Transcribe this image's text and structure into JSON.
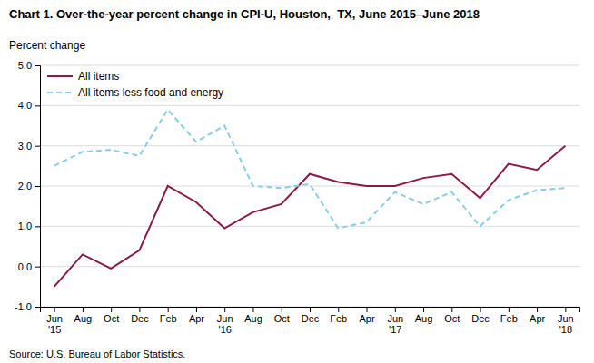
{
  "chart_data": {
    "type": "line",
    "title": "Chart 1. Over-the-year percent change in CPI-U, Houston,  TX, June 2015–June 2018",
    "ylabel": "Percent change",
    "annotations": [
      "Source: U.S. Bureau of Labor Statistics."
    ],
    "categories": [
      "Jun\n'15",
      "Aug",
      "Oct",
      "Dec",
      "Feb",
      "Apr",
      "Jun\n'16",
      "Aug",
      "Oct",
      "Dec",
      "Feb",
      "Apr",
      "Jun\n'17",
      "Aug",
      "Oct",
      "Dec",
      "Feb",
      "Apr",
      "Jun\n'18"
    ],
    "series": [
      {
        "name": "All items",
        "color": "#8B1A4A",
        "line_style": "solid",
        "values": [
          -0.5,
          0.3,
          -0.05,
          0.4,
          2.0,
          1.6,
          0.95,
          1.35,
          1.55,
          2.3,
          2.1,
          2.0,
          2.0,
          2.2,
          2.3,
          1.7,
          2.55,
          2.4,
          3.0
        ]
      },
      {
        "name": "All items less food and energy",
        "color": "#87CEEB",
        "line_style": "dashed",
        "values": [
          2.5,
          2.85,
          2.9,
          2.75,
          3.9,
          3.1,
          3.5,
          2.0,
          1.95,
          2.05,
          0.95,
          1.1,
          1.85,
          1.55,
          1.85,
          1.0,
          1.65,
          1.9,
          1.95
        ]
      }
    ],
    "ylim": [
      -1.0,
      5.0
    ],
    "yticks": [
      {
        "value": -1.0,
        "label": "-1.0"
      },
      {
        "value": 0.0,
        "label": "0.0"
      },
      {
        "value": 1.0,
        "label": "1.0"
      },
      {
        "value": 2.0,
        "label": "2.0"
      },
      {
        "value": 3.0,
        "label": "3.0"
      },
      {
        "value": 4.0,
        "label": "4.0"
      },
      {
        "value": 5.0,
        "label": "5.0"
      }
    ],
    "grid": true,
    "legend": "upper left"
  }
}
